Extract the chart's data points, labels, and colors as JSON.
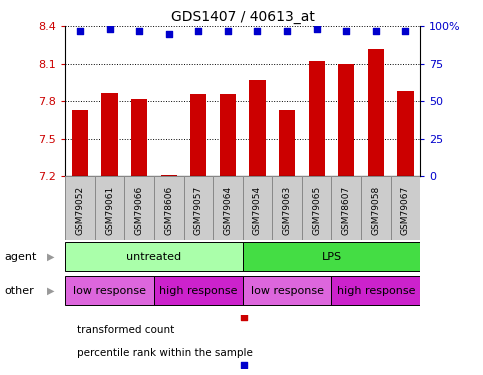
{
  "title": "GDS1407 / 40613_at",
  "samples": [
    "GSM79052",
    "GSM79061",
    "GSM79066",
    "GSM78606",
    "GSM79057",
    "GSM79064",
    "GSM79054",
    "GSM79063",
    "GSM79065",
    "GSM78607",
    "GSM79058",
    "GSM79067"
  ],
  "bar_values": [
    7.73,
    7.87,
    7.82,
    7.21,
    7.86,
    7.86,
    7.97,
    7.73,
    8.12,
    8.1,
    8.22,
    7.88
  ],
  "percentile_values": [
    97,
    98,
    97,
    95,
    97,
    97,
    97,
    97,
    98,
    97,
    97,
    97
  ],
  "ylim": [
    7.2,
    8.4
  ],
  "yticks": [
    7.2,
    7.5,
    7.8,
    8.1,
    8.4
  ],
  "ytick_labels": [
    "7.2",
    "7.5",
    "7.8",
    "8.1",
    "8.4"
  ],
  "right_yticks": [
    0,
    25,
    50,
    75,
    100
  ],
  "right_ytick_labels": [
    "0",
    "25",
    "50",
    "75",
    "100%"
  ],
  "bar_color": "#cc0000",
  "dot_color": "#0000cc",
  "agent_groups": [
    {
      "label": "untreated",
      "start": 0,
      "end": 6,
      "color": "#aaffaa"
    },
    {
      "label": "LPS",
      "start": 6,
      "end": 12,
      "color": "#44dd44"
    }
  ],
  "other_groups": [
    {
      "label": "low response",
      "start": 0,
      "end": 3,
      "color": "#dd66dd"
    },
    {
      "label": "high response",
      "start": 3,
      "end": 6,
      "color": "#cc22cc"
    },
    {
      "label": "low response",
      "start": 6,
      "end": 9,
      "color": "#dd66dd"
    },
    {
      "label": "high response",
      "start": 9,
      "end": 12,
      "color": "#cc22cc"
    }
  ],
  "legend_items": [
    {
      "label": "transformed count",
      "color": "#cc0000"
    },
    {
      "label": "percentile rank within the sample",
      "color": "#0000cc"
    }
  ],
  "background_color": "#ffffff",
  "agent_label": "agent",
  "other_label": "other",
  "sample_box_color": "#cccccc",
  "sample_box_edge": "#888888"
}
